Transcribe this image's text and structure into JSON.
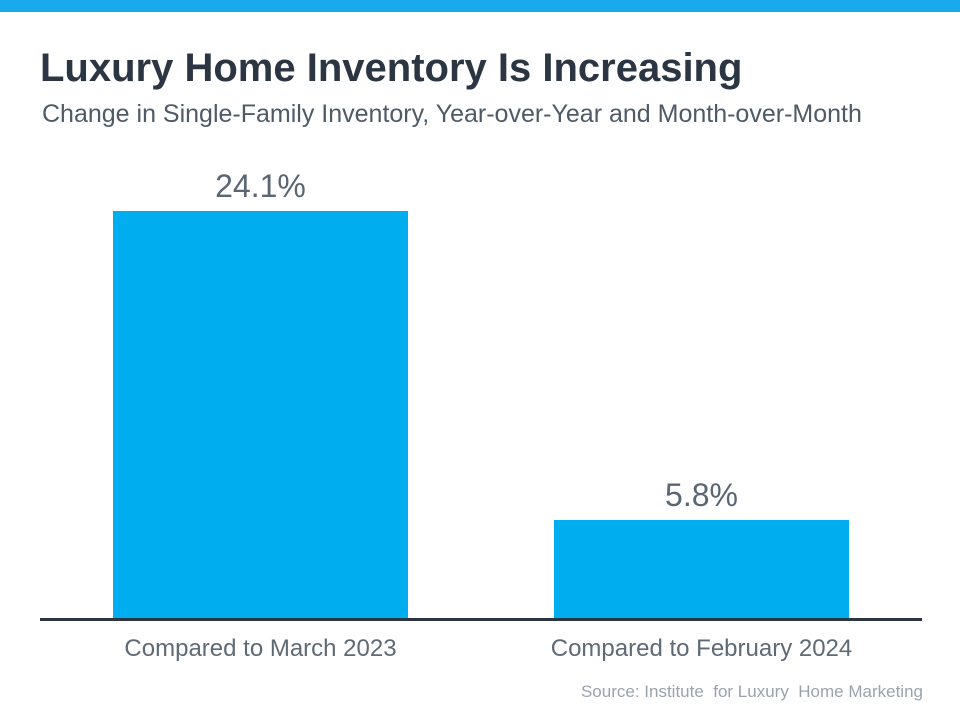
{
  "colors": {
    "top_bar": "#18AAEC",
    "bar": "#00AEEF",
    "axis_line": "#2B3642",
    "title_text": "#2B3642",
    "subtitle_text": "#4E5A66",
    "value_label_text": "#5B6674",
    "category_label_text": "#5E6A76",
    "source_text": "#9AA3AC"
  },
  "header": {
    "title": "Luxury Home Inventory Is Increasing",
    "subtitle": "Change in Single-Family Inventory, Year-over-Year and Month-over-Month"
  },
  "chart_data": {
    "type": "bar",
    "title": "Luxury Home Inventory Is Increasing",
    "subtitle": "Change in Single-Family Inventory, Year-over-Year and Month-over-Month",
    "categories": [
      "Compared to March 2023",
      "Compared to February 2024"
    ],
    "values": [
      24.1,
      5.8
    ],
    "value_labels": [
      "24.1%",
      "5.8%"
    ],
    "xlabel": "",
    "ylabel": "",
    "ylim": [
      0,
      25
    ],
    "grid": false,
    "legend": false,
    "bar_color": "#00AEEF"
  },
  "footer": {
    "source": "Source: Institute  for Luxury  Home Marketing"
  }
}
